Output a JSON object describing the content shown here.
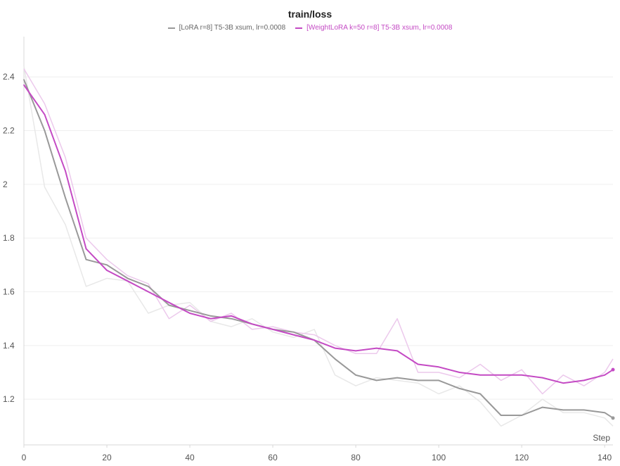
{
  "chart_data": {
    "type": "line",
    "title": "train/loss",
    "xlabel": "Step",
    "ylabel": "",
    "xlim": [
      0,
      142
    ],
    "ylim": [
      1.03,
      2.55
    ],
    "x_ticks": [
      0,
      20,
      40,
      60,
      80,
      100,
      120,
      140
    ],
    "y_ticks": [
      1.2,
      1.4,
      1.6,
      1.8,
      2,
      2.2,
      2.4
    ],
    "grid": "horizontal",
    "legend_position": "top-center",
    "series": [
      {
        "name": "[LoRA r=8] T5-3B xsum, lr=0.0008",
        "color": "#999999",
        "raw_color": "#e8e8e8",
        "x": [
          0,
          5,
          10,
          15,
          20,
          25,
          30,
          35,
          40,
          45,
          50,
          55,
          60,
          65,
          70,
          75,
          80,
          85,
          90,
          95,
          100,
          105,
          110,
          115,
          120,
          125,
          130,
          135,
          140,
          142
        ],
        "smoothed": [
          2.39,
          2.2,
          1.95,
          1.72,
          1.7,
          1.65,
          1.62,
          1.55,
          1.53,
          1.51,
          1.5,
          1.48,
          1.46,
          1.45,
          1.42,
          1.35,
          1.29,
          1.27,
          1.28,
          1.27,
          1.27,
          1.24,
          1.22,
          1.14,
          1.14,
          1.17,
          1.16,
          1.16,
          1.15,
          1.13
        ],
        "raw": [
          2.44,
          1.99,
          1.85,
          1.62,
          1.65,
          1.64,
          1.52,
          1.55,
          1.56,
          1.49,
          1.47,
          1.5,
          1.45,
          1.43,
          1.46,
          1.29,
          1.25,
          1.28,
          1.27,
          1.26,
          1.22,
          1.25,
          1.19,
          1.1,
          1.14,
          1.2,
          1.15,
          1.15,
          1.13,
          1.1
        ]
      },
      {
        "name": "[WeightLoRA k=50 r=8] T5-3B xsum, lr=0.0008",
        "color": "#c44ac4",
        "raw_color": "#ecc9ec",
        "x": [
          0,
          5,
          10,
          15,
          20,
          25,
          30,
          35,
          40,
          45,
          50,
          55,
          60,
          65,
          70,
          75,
          80,
          85,
          90,
          95,
          100,
          105,
          110,
          115,
          120,
          125,
          130,
          135,
          140,
          142
        ],
        "smoothed": [
          2.37,
          2.26,
          2.05,
          1.76,
          1.68,
          1.64,
          1.6,
          1.56,
          1.52,
          1.5,
          1.51,
          1.48,
          1.46,
          1.44,
          1.42,
          1.39,
          1.38,
          1.39,
          1.38,
          1.33,
          1.32,
          1.3,
          1.29,
          1.29,
          1.29,
          1.28,
          1.26,
          1.27,
          1.29,
          1.31
        ],
        "raw": [
          2.43,
          2.3,
          2.1,
          1.8,
          1.72,
          1.66,
          1.63,
          1.5,
          1.55,
          1.49,
          1.52,
          1.46,
          1.47,
          1.45,
          1.44,
          1.4,
          1.37,
          1.37,
          1.5,
          1.3,
          1.3,
          1.28,
          1.33,
          1.27,
          1.31,
          1.22,
          1.29,
          1.25,
          1.3,
          1.35
        ]
      }
    ]
  }
}
